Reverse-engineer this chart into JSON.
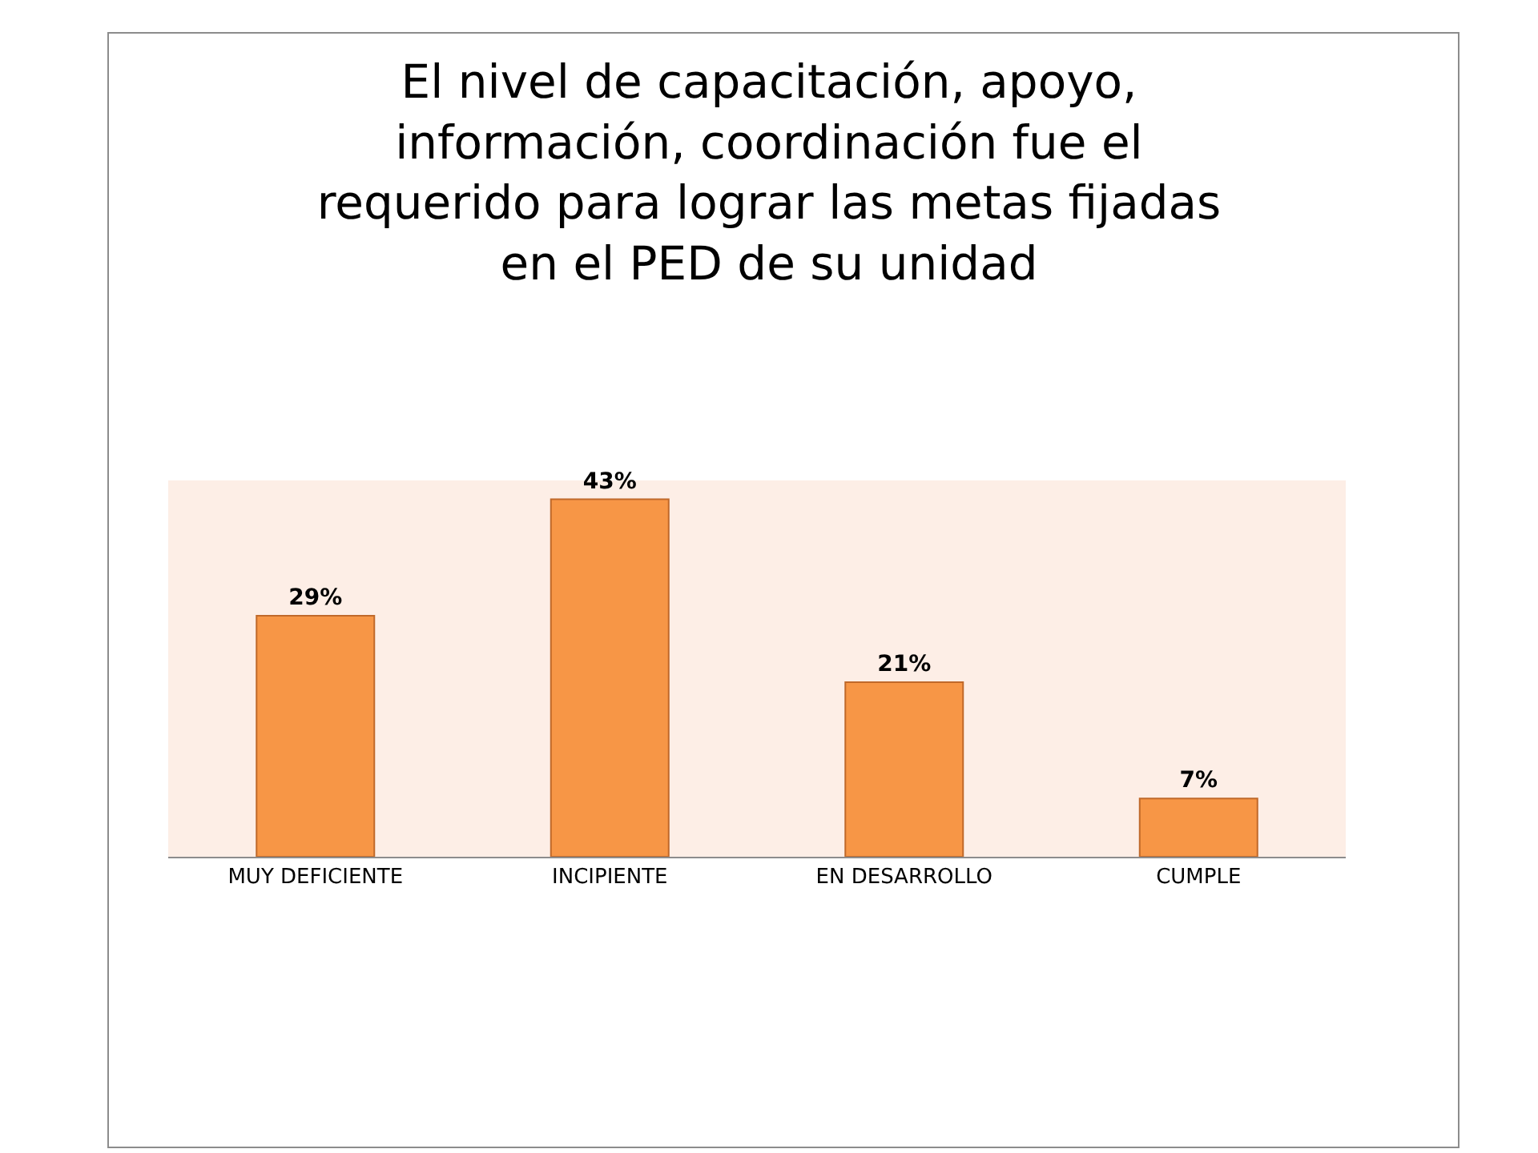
{
  "chart_data": {
    "type": "bar",
    "title": "El nivel de capacitación, apoyo,\ninformación, coordinación fue el\nrequerido para lograr las metas fijadas\nen el PED de su unidad",
    "categories": [
      "MUY DEFICIENTE",
      "INCIPIENTE",
      "EN DESARROLLO",
      "CUMPLE"
    ],
    "values": [
      29,
      43,
      21,
      7
    ],
    "value_labels": [
      "29%",
      "43%",
      "21%",
      "7%"
    ],
    "color": "#f79646"
  }
}
